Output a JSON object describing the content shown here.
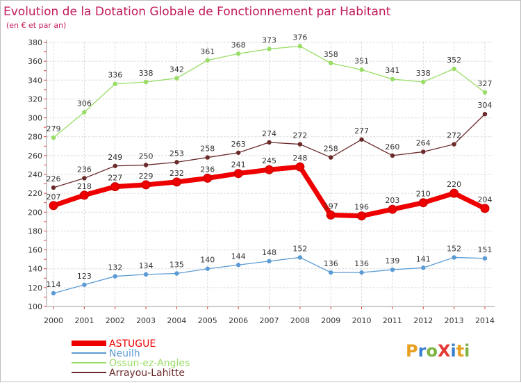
{
  "chart_data": {
    "type": "line",
    "title": "Evolution de la Dotation Globale de Fonctionnement par Habitant",
    "subtitle": "(en € et par an)",
    "x": [
      "2000",
      "2001",
      "2002",
      "2003",
      "2004",
      "2005",
      "2006",
      "2007",
      "2008",
      "2009",
      "2010",
      "2011",
      "2012",
      "2013",
      "2014"
    ],
    "ylim": [
      100,
      380
    ],
    "yticks": [
      100,
      120,
      140,
      160,
      180,
      200,
      220,
      240,
      260,
      280,
      300,
      320,
      340,
      360,
      380
    ],
    "grid": true,
    "series": [
      {
        "name": "ASTUGUE",
        "color": "#ee0000",
        "values": [
          207,
          218,
          227,
          229,
          232,
          236,
          241,
          245,
          248,
          197,
          196,
          203,
          210,
          220,
          204
        ]
      },
      {
        "name": "Neuilh",
        "color": "#5b9bd5",
        "values": [
          114,
          123,
          132,
          134,
          135,
          140,
          144,
          148,
          152,
          136,
          136,
          139,
          141,
          152,
          151
        ]
      },
      {
        "name": "Ossun-ez-Angles",
        "color": "#99dd66",
        "values": [
          279,
          306,
          336,
          338,
          342,
          361,
          368,
          373,
          376,
          358,
          351,
          341,
          338,
          352,
          327
        ]
      },
      {
        "name": "Arrayou-Lahitte",
        "color": "#6b2a2a",
        "values": [
          226,
          236,
          249,
          250,
          253,
          258,
          263,
          274,
          272,
          258,
          277,
          260,
          264,
          272,
          304
        ]
      }
    ]
  },
  "logo": {
    "text": "ProXiti"
  }
}
